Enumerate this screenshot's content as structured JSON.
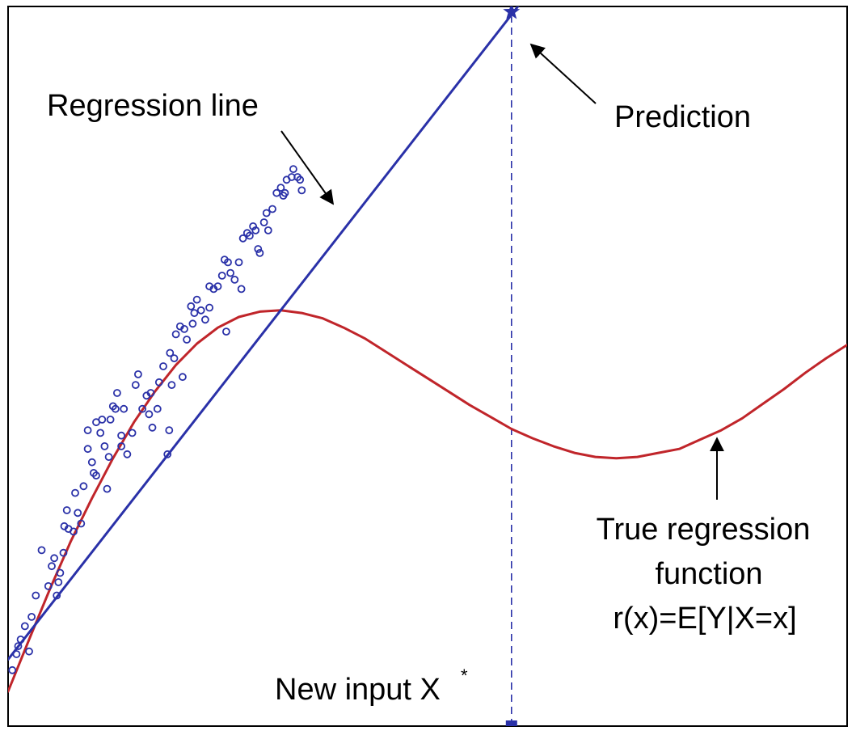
{
  "colors": {
    "axes": "#000000",
    "regression_line": "#2a31a8",
    "true_function": "#c0252a",
    "observations": "#2a31a8",
    "annotation_arrows": "#000000"
  },
  "chart_data": {
    "type": "scatter",
    "title": "",
    "xlabel": "",
    "ylabel": "",
    "xlim": [
      0,
      10
    ],
    "ylim": [
      -1.6,
      3.8
    ],
    "grid": false,
    "ticks": false,
    "series": [
      {
        "kind": "line",
        "role": "true-regression-function",
        "color": "#c0252a",
        "x": [
          0,
          0.25,
          0.5,
          0.75,
          1,
          1.25,
          1.5,
          1.75,
          2,
          2.25,
          2.5,
          2.75,
          3,
          3.25,
          3.5,
          3.75,
          4,
          4.25,
          4.5,
          4.75,
          5,
          5.25,
          5.5,
          5.75,
          6,
          6.25,
          6.5,
          6.75,
          7,
          7.25,
          7.5,
          7.75,
          8,
          8.25,
          8.5,
          8.75,
          9,
          9.25,
          9.5,
          9.75,
          10
        ],
        "y": [
          -1.34,
          -0.95,
          -0.57,
          -0.21,
          0.11,
          0.41,
          0.68,
          0.91,
          1.11,
          1.27,
          1.39,
          1.47,
          1.51,
          1.52,
          1.5,
          1.46,
          1.39,
          1.31,
          1.21,
          1.11,
          1.01,
          0.91,
          0.81,
          0.72,
          0.63,
          0.56,
          0.5,
          0.45,
          0.42,
          0.41,
          0.42,
          0.45,
          0.48,
          0.55,
          0.62,
          0.71,
          0.82,
          0.93,
          1.05,
          1.16,
          1.26
        ]
      },
      {
        "kind": "line",
        "role": "regression-line",
        "color": "#2a31a8",
        "x": [
          0,
          6.2
        ],
        "y": [
          -1.1,
          3.9
        ]
      },
      {
        "kind": "scatter",
        "role": "observations",
        "color": "#2a31a8",
        "x": [
          0.05,
          0.1,
          0.15,
          0.25,
          0.28,
          0.33,
          0.4,
          0.48,
          0.52,
          0.55,
          0.6,
          0.62,
          0.67,
          0.7,
          0.72,
          0.78,
          0.8,
          0.83,
          0.87,
          0.9,
          0.95,
          1.0,
          1.02,
          1.05,
          1.1,
          1.12,
          1.15,
          1.18,
          1.2,
          1.22,
          1.28,
          1.3,
          1.35,
          1.38,
          1.42,
          1.48,
          1.52,
          1.55,
          1.6,
          1.65,
          1.7,
          1.72,
          1.78,
          1.8,
          1.85,
          1.9,
          1.93,
          1.95,
          1.98,
          2.0,
          2.05,
          2.1,
          2.13,
          2.18,
          2.22,
          2.25,
          2.3,
          2.35,
          2.4,
          2.45,
          2.5,
          2.55,
          2.58,
          2.62,
          2.65,
          2.7,
          2.75,
          2.8,
          2.85,
          2.88,
          2.92,
          2.95,
          3.0,
          3.05,
          3.08,
          3.15,
          3.2,
          3.25,
          3.3,
          3.32,
          3.38,
          3.4,
          3.45,
          3.48,
          3.5,
          0.12,
          0.2,
          0.58,
          0.66,
          0.95,
          1.05,
          1.25,
          1.35,
          1.68,
          1.92,
          2.08,
          2.2,
          2.4,
          2.6,
          2.78,
          2.98,
          3.1,
          3.28
        ],
        "y": [
          -1.18,
          -1.06,
          -0.95,
          -1.04,
          -0.78,
          -0.62,
          -0.28,
          -0.55,
          -0.4,
          -0.34,
          -0.52,
          -0.45,
          -0.1,
          0.02,
          -0.12,
          -0.14,
          0.15,
          0.0,
          -0.08,
          0.2,
          0.48,
          0.38,
          0.3,
          0.68,
          0.6,
          0.7,
          0.5,
          0.18,
          0.42,
          0.7,
          0.78,
          0.9,
          0.58,
          0.78,
          0.44,
          0.6,
          0.96,
          1.04,
          0.78,
          0.88,
          0.9,
          0.64,
          0.78,
          0.98,
          1.1,
          0.44,
          1.2,
          0.96,
          1.16,
          1.34,
          1.4,
          1.38,
          1.3,
          1.55,
          1.5,
          1.6,
          1.52,
          1.45,
          1.7,
          1.68,
          1.7,
          1.78,
          1.9,
          1.88,
          1.8,
          1.75,
          1.88,
          2.06,
          2.1,
          2.08,
          2.15,
          2.12,
          1.95,
          2.18,
          2.25,
          2.28,
          2.4,
          2.44,
          2.4,
          2.5,
          2.52,
          2.58,
          2.52,
          2.5,
          2.42,
          -1.0,
          -0.85,
          -0.62,
          -0.3,
          0.62,
          0.28,
          0.8,
          0.5,
          0.74,
          0.62,
          1.02,
          1.42,
          1.54,
          1.36,
          1.68,
          1.98,
          2.12,
          2.38
        ]
      },
      {
        "kind": "marker",
        "role": "prediction",
        "marker": "star",
        "color": "#2a31a8",
        "x": [
          6.0
        ],
        "y": [
          3.76
        ]
      },
      {
        "kind": "marker",
        "role": "new-input",
        "marker": "square",
        "color": "#2a31a8",
        "x": [
          6.0
        ],
        "y": [
          -1.6
        ]
      },
      {
        "kind": "guide",
        "role": "dashed-vertical-at-new-input",
        "style": "dashed",
        "color": "#2a31a8",
        "x": [
          6.0,
          6.0
        ],
        "y": [
          -1.6,
          3.76
        ]
      }
    ],
    "annotations": {
      "regression_line": "Regression line",
      "prediction": "Prediction",
      "true_function_line1": "True regression",
      "true_function_line2": "function",
      "true_function_line3": "r(x)=E[Y|X=x]",
      "new_input": "New input X",
      "new_input_superscript": "*"
    }
  }
}
